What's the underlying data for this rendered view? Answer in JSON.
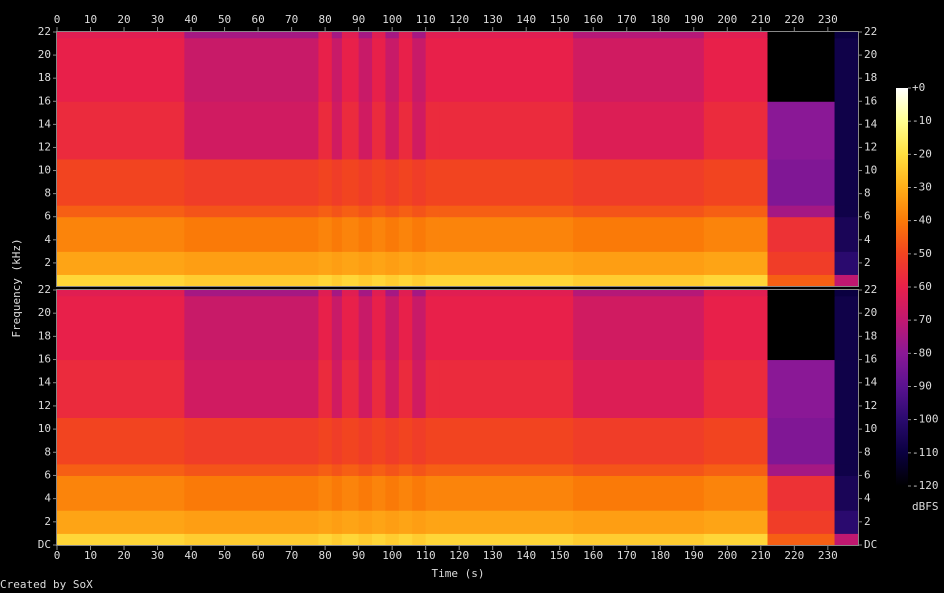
{
  "chart_data": {
    "type": "spectrogram",
    "xlabel": "Time (s)",
    "ylabel": "Frequency (kHz)",
    "colorbar_label": "dBFS",
    "credit": "Created by SoX",
    "xlim": [
      0,
      239
    ],
    "xticks": [
      0,
      10,
      20,
      30,
      40,
      50,
      60,
      70,
      80,
      90,
      100,
      110,
      120,
      130,
      140,
      150,
      160,
      170,
      180,
      190,
      200,
      210,
      220,
      230
    ],
    "ylim": [
      0,
      22
    ],
    "yticks": [
      22,
      20,
      18,
      16,
      14,
      12,
      10,
      8,
      6,
      4,
      2
    ],
    "yticks_bottom": [
      22,
      20,
      18,
      16,
      14,
      12,
      10,
      8,
      6,
      4,
      2,
      {
        "value": 0,
        "label": "DC"
      }
    ],
    "clim": [
      -120,
      0
    ],
    "cticks": [
      {
        "value": 0,
        "label": "+0"
      },
      -10,
      -20,
      -30,
      -40,
      -50,
      -60,
      -70,
      -80,
      -90,
      -100,
      -110,
      -120
    ],
    "colormap": [
      "#000000",
      "#0a0040",
      "#2a0a6e",
      "#5a1290",
      "#8a1896",
      "#c01870",
      "#e8204a",
      "#f24420",
      "#fa7a08",
      "#ffae18",
      "#ffe040",
      "#ffff90",
      "#ffffff"
    ],
    "time_edges": [
      0,
      38,
      78,
      82,
      85,
      90,
      94,
      98,
      102,
      106,
      110,
      114,
      154,
      193,
      212,
      232,
      239
    ],
    "freq_edges": [
      0,
      1,
      3,
      6,
      7,
      11,
      16,
      21.5,
      22
    ],
    "channels": [
      {
        "values": [
          [
            -22,
            -24,
            -22,
            -24,
            -22,
            -24,
            -22,
            -24,
            -22,
            -24,
            -22,
            -22,
            -24,
            -22,
            -45,
            -70
          ],
          [
            -32,
            -33,
            -32,
            -33,
            -32,
            -33,
            -32,
            -33,
            -32,
            -33,
            -32,
            -32,
            -33,
            -32,
            -52,
            -100
          ],
          [
            -38,
            -40,
            -38,
            -40,
            -38,
            -40,
            -38,
            -40,
            -38,
            -40,
            -38,
            -38,
            -40,
            -38,
            -55,
            -105
          ],
          [
            -45,
            -47,
            -45,
            -47,
            -45,
            -47,
            -45,
            -47,
            -45,
            -47,
            -45,
            -45,
            -47,
            -45,
            -75,
            -108
          ],
          [
            -50,
            -52,
            -50,
            -52,
            -50,
            -52,
            -50,
            -52,
            -50,
            -52,
            -50,
            -50,
            -52,
            -50,
            -82,
            -108
          ],
          [
            -57,
            -66,
            -57,
            -66,
            -57,
            -66,
            -57,
            -66,
            -57,
            -66,
            -57,
            -57,
            -63,
            -57,
            -80,
            -108
          ],
          [
            -60,
            -68,
            -60,
            -68,
            -60,
            -68,
            -60,
            -68,
            -60,
            -68,
            -60,
            -60,
            -66,
            -60,
            -120,
            -108
          ],
          [
            -62,
            -75,
            -62,
            -75,
            -62,
            -75,
            -62,
            -75,
            -62,
            -75,
            -62,
            -62,
            -72,
            -62,
            -120,
            -110
          ]
        ]
      },
      {
        "values": [
          [
            -22,
            -24,
            -22,
            -24,
            -22,
            -24,
            -22,
            -24,
            -22,
            -24,
            -22,
            -22,
            -24,
            -22,
            -45,
            -70
          ],
          [
            -32,
            -33,
            -32,
            -33,
            -32,
            -33,
            -32,
            -33,
            -32,
            -33,
            -32,
            -32,
            -33,
            -32,
            -52,
            -100
          ],
          [
            -38,
            -40,
            -38,
            -40,
            -38,
            -40,
            -38,
            -40,
            -38,
            -40,
            -38,
            -38,
            -40,
            -38,
            -55,
            -105
          ],
          [
            -45,
            -47,
            -45,
            -47,
            -45,
            -47,
            -45,
            -47,
            -45,
            -47,
            -45,
            -45,
            -47,
            -45,
            -75,
            -108
          ],
          [
            -50,
            -52,
            -50,
            -52,
            -50,
            -52,
            -50,
            -52,
            -50,
            -52,
            -50,
            -50,
            -52,
            -50,
            -82,
            -108
          ],
          [
            -57,
            -66,
            -57,
            -66,
            -57,
            -66,
            -57,
            -66,
            -57,
            -66,
            -57,
            -57,
            -63,
            -57,
            -80,
            -108
          ],
          [
            -60,
            -68,
            -60,
            -68,
            -60,
            -68,
            -60,
            -68,
            -60,
            -68,
            -60,
            -60,
            -66,
            -60,
            -120,
            -108
          ],
          [
            -62,
            -75,
            -62,
            -75,
            -62,
            -75,
            -62,
            -75,
            -62,
            -75,
            -62,
            -62,
            -72,
            -62,
            -120,
            -110
          ]
        ]
      }
    ]
  }
}
